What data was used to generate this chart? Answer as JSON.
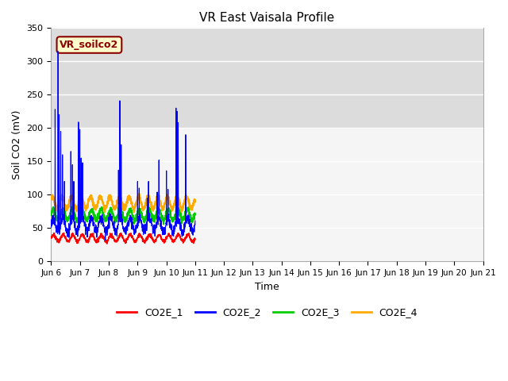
{
  "title": "VR East Vaisala Profile",
  "xlabel": "Time",
  "ylabel": "Soil CO2 (mV)",
  "ylim": [
    0,
    350
  ],
  "xlim": [
    0,
    360
  ],
  "bg_band_y1": 200,
  "bg_band_y2": 350,
  "bg_band_color": "#dcdcdc",
  "plot_bg": "#f5f5f5",
  "fig_bg": "#ffffff",
  "xtick_labels": [
    "Jun 6",
    "Jun 7",
    "Jun 8",
    "Jun 9",
    "Jun 10",
    "Jun 11",
    "Jun 12",
    "Jun 13",
    "Jun 14",
    "Jun 15",
    "Jun 16",
    "Jun 17",
    "Jun 18",
    "Jun 19",
    "Jun 20",
    "Jun 21"
  ],
  "ytick_vals": [
    0,
    50,
    100,
    150,
    200,
    250,
    300,
    350
  ],
  "legend_box_label": "VR_soilco2",
  "legend_box_bg": "#ffffcc",
  "legend_box_edge": "#8b0000",
  "series": [
    {
      "label": "CO2E_1",
      "color": "#ff0000"
    },
    {
      "label": "CO2E_2",
      "color": "#0000ff"
    },
    {
      "label": "CO2E_3",
      "color": "#00cc00"
    },
    {
      "label": "CO2E_4",
      "color": "#ffaa00"
    }
  ],
  "n_points": 1080
}
